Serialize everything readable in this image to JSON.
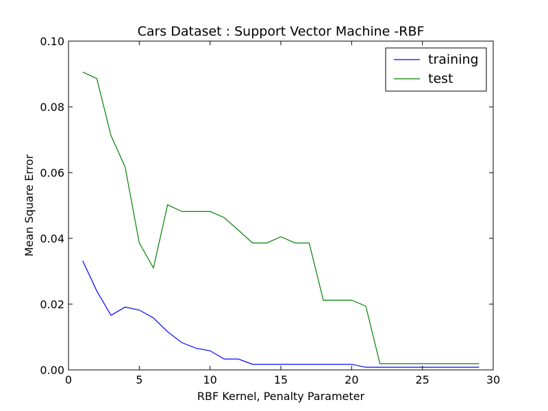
{
  "chart_data": {
    "type": "line",
    "title": "Cars Dataset : Support Vector Machine -RBF",
    "xlabel": "RBF Kernel, Penalty Parameter",
    "ylabel": "Mean Square Error",
    "xlim": [
      0,
      30
    ],
    "ylim": [
      0.0,
      0.1
    ],
    "xticks": [
      0,
      5,
      10,
      15,
      20,
      25,
      30
    ],
    "xtick_labels": [
      "0",
      "5",
      "10",
      "15",
      "20",
      "25",
      "30"
    ],
    "yticks": [
      0.0,
      0.02,
      0.04,
      0.06,
      0.08,
      0.1
    ],
    "ytick_labels": [
      "0.00",
      "0.02",
      "0.04",
      "0.06",
      "0.08",
      "0.10"
    ],
    "grid": false,
    "legend_position": "top-right",
    "series": [
      {
        "name": "training",
        "color": "#0000ff",
        "x": [
          1,
          2,
          3,
          4,
          5,
          6,
          7,
          8,
          9,
          10,
          11,
          12,
          13,
          14,
          15,
          16,
          17,
          18,
          19,
          20,
          21,
          22,
          23,
          24,
          25,
          26,
          27,
          28,
          29
        ],
        "values": [
          0.0332,
          0.024,
          0.0166,
          0.0191,
          0.0182,
          0.0158,
          0.0116,
          0.0083,
          0.0066,
          0.0058,
          0.0033,
          0.0033,
          0.0017,
          0.0017,
          0.0017,
          0.0017,
          0.0017,
          0.0017,
          0.0017,
          0.0017,
          0.0008,
          0.0008,
          0.0008,
          0.0008,
          0.0008,
          0.0008,
          0.0008,
          0.0008,
          0.0008
        ]
      },
      {
        "name": "test",
        "color": "#008000",
        "x": [
          1,
          2,
          3,
          4,
          5,
          6,
          7,
          8,
          9,
          10,
          11,
          12,
          13,
          14,
          15,
          16,
          17,
          18,
          19,
          20,
          21,
          22,
          23,
          24,
          25,
          26,
          27,
          28,
          29
        ],
        "values": [
          0.0906,
          0.0886,
          0.0713,
          0.0617,
          0.0386,
          0.031,
          0.0502,
          0.0482,
          0.0482,
          0.0482,
          0.0463,
          0.0425,
          0.0386,
          0.0386,
          0.0405,
          0.0386,
          0.0386,
          0.0212,
          0.0212,
          0.0212,
          0.0194,
          0.0019,
          0.0019,
          0.0019,
          0.0019,
          0.0019,
          0.0019,
          0.0019,
          0.0019
        ]
      }
    ]
  }
}
